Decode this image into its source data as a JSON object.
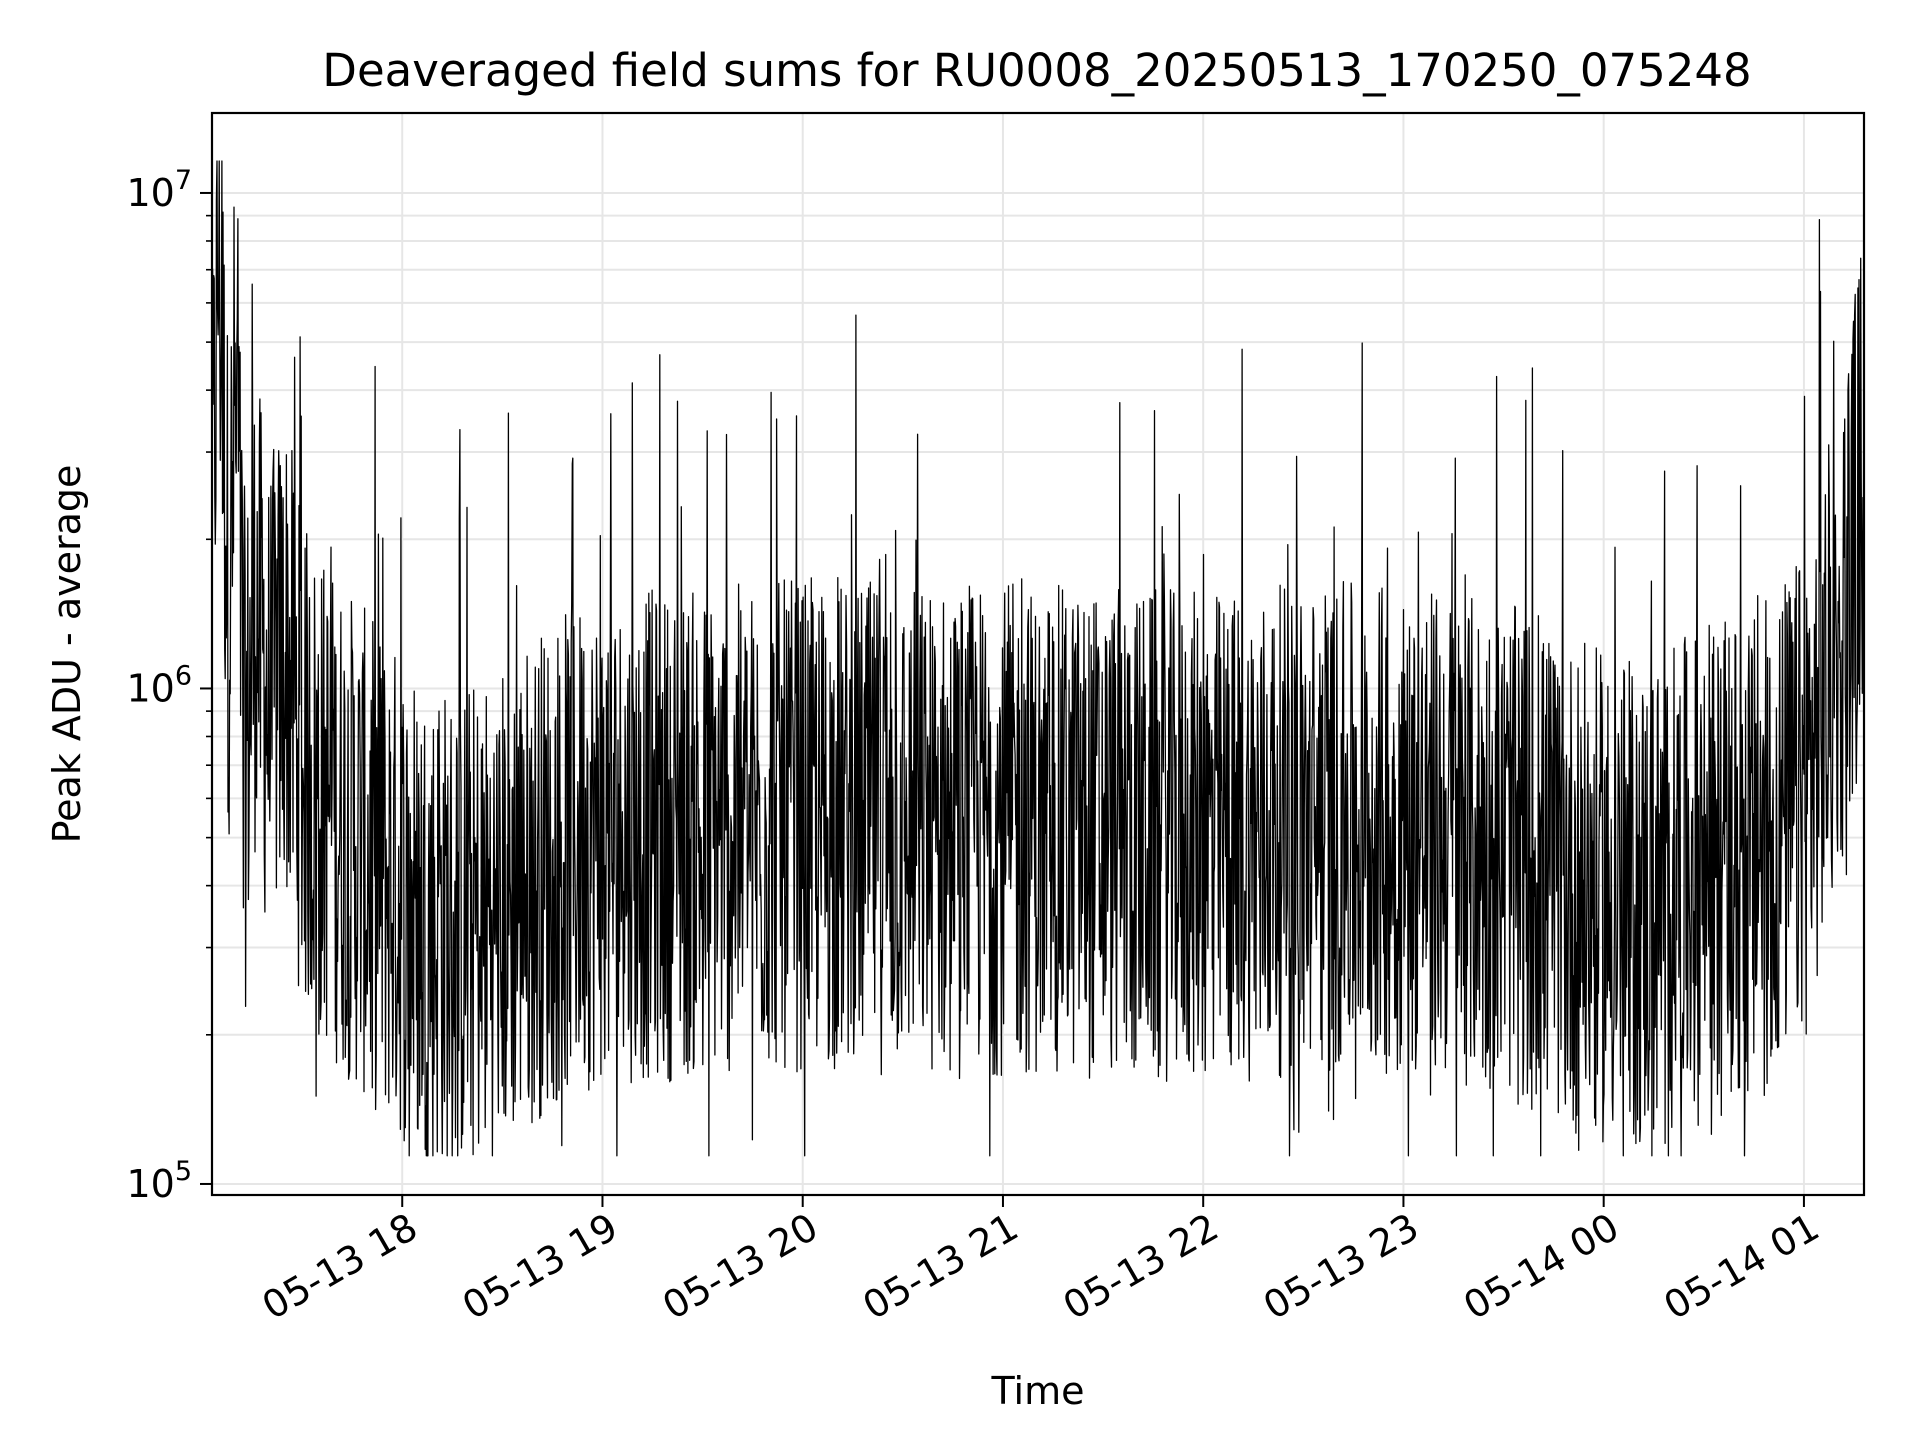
{
  "chart_data": {
    "type": "line",
    "title": "Deaveraged field sums for RU0008_20250513_170250_075248",
    "xlabel": "Time",
    "ylabel": "Peak ADU - average",
    "yscale": "log",
    "ylim": [
      95000,
      14500000
    ],
    "xlim": [
      "2025-05-13 17:03",
      "2025-05-14 01:18"
    ],
    "grid": true,
    "line_color": "#000000",
    "grid_color": "#e6e6e6",
    "y_ticks": [
      {
        "value": 100000,
        "base": "10",
        "exp": "5"
      },
      {
        "value": 1000000,
        "base": "10",
        "exp": "6"
      },
      {
        "value": 10000000,
        "base": "10",
        "exp": "7"
      }
    ],
    "x_ticks": [
      {
        "time": "2025-05-13 18:00",
        "label": "05-13 18"
      },
      {
        "time": "2025-05-13 19:00",
        "label": "05-13 19"
      },
      {
        "time": "2025-05-13 20:00",
        "label": "05-13 20"
      },
      {
        "time": "2025-05-13 21:00",
        "label": "05-13 21"
      },
      {
        "time": "2025-05-13 22:00",
        "label": "05-13 22"
      },
      {
        "time": "2025-05-13 23:00",
        "label": "05-13 23"
      },
      {
        "time": "2025-05-14 00:00",
        "label": "05-14 00"
      },
      {
        "time": "2025-05-14 01:00",
        "label": "05-14 01"
      }
    ],
    "series": [
      {
        "points": [
          [
            "2025-05-13 17:03",
            2000000
          ],
          [
            "2025-05-13 17:05",
            8000000
          ],
          [
            "2025-05-13 17:08",
            1500000
          ],
          [
            "2025-05-13 17:10",
            4000000
          ],
          [
            "2025-05-13 17:13",
            700000
          ],
          [
            "2025-05-13 17:16",
            1500000
          ],
          [
            "2025-05-13 17:20",
            900000
          ],
          [
            "2025-05-13 17:25",
            1200000
          ],
          [
            "2025-05-13 17:30",
            700000
          ],
          [
            "2025-05-13 17:40",
            550000
          ],
          [
            "2025-05-13 17:50",
            450000
          ],
          [
            "2025-05-13 18:00",
            380000
          ],
          [
            "2025-05-13 18:10",
            330000
          ],
          [
            "2025-05-13 18:20",
            330000
          ],
          [
            "2025-05-13 18:30",
            360000
          ],
          [
            "2025-05-13 18:40",
            420000
          ],
          [
            "2025-05-13 18:50",
            470000
          ],
          [
            "2025-05-13 19:00",
            500000
          ],
          [
            "2025-05-13 19:30",
            510000
          ],
          [
            "2025-05-13 20:00",
            530000
          ],
          [
            "2025-05-13 20:30",
            520000
          ],
          [
            "2025-05-13 21:00",
            520000
          ],
          [
            "2025-05-13 21:30",
            510000
          ],
          [
            "2025-05-13 22:00",
            500000
          ],
          [
            "2025-05-13 22:30",
            520000
          ],
          [
            "2025-05-13 23:00",
            520000
          ],
          [
            "2025-05-13 23:30",
            480000
          ],
          [
            "2025-05-13 23:50",
            400000
          ],
          [
            "2025-05-14 00:10",
            360000
          ],
          [
            "2025-05-14 00:30",
            420000
          ],
          [
            "2025-05-14 00:45",
            450000
          ],
          [
            "2025-05-14 01:00",
            600000
          ],
          [
            "2025-05-14 01:10",
            1200000
          ],
          [
            "2025-05-14 01:15",
            2000000
          ],
          [
            "2025-05-14 01:18",
            3000000
          ]
        ]
      }
    ]
  }
}
